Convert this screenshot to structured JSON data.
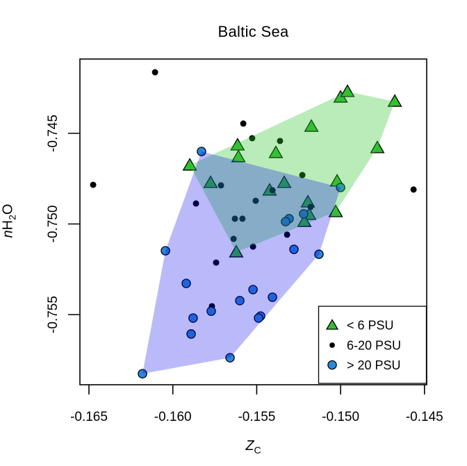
{
  "title": "Baltic Sea",
  "axes": {
    "x": {
      "label_italic": "Z",
      "label_sub": "C",
      "ticks": [
        -0.165,
        -0.16,
        -0.155,
        -0.15,
        -0.145
      ],
      "tick_labels": [
        "-0.165",
        "-0.160",
        "-0.155",
        "-0.150",
        "-0.145"
      ],
      "range": [
        -0.16554,
        -0.14487
      ]
    },
    "y": {
      "label_italic": "n",
      "label_main": "H",
      "label_sub": "2",
      "label_post": "O",
      "ticks": [
        -0.745,
        -0.75,
        -0.755
      ],
      "tick_labels": [
        "-0.745",
        "-0.750",
        "-0.755"
      ],
      "range": [
        -0.75887,
        -0.7409
      ]
    }
  },
  "legend": {
    "position": "bottomright",
    "items": [
      {
        "label": "< 6 PSU",
        "marker": "triangle",
        "color": "#35BC35"
      },
      {
        "label": "6-20 PSU",
        "marker": "dot",
        "color": "#000000"
      },
      {
        "label": "> 20 PSU",
        "marker": "circle",
        "color": "#2B87D8"
      }
    ]
  },
  "chart_data": {
    "type": "scatter",
    "title": "Baltic Sea",
    "xlabel": "Z_C",
    "ylabel": "nH2O",
    "xlim": [
      -0.16554,
      -0.14487
    ],
    "ylim": [
      -0.75887,
      -0.7409
    ],
    "grid": false,
    "legend_position": "bottomright",
    "series": [
      {
        "name": "< 6 PSU",
        "marker": "triangle",
        "color": "#35BC35",
        "edge_color": "#000000",
        "hull": true,
        "hull_color": "#31C831",
        "hull_opacity": 0.34,
        "points": [
          [
            -0.15614,
            -0.74565
          ],
          [
            -0.15609,
            -0.7463
          ],
          [
            -0.15899,
            -0.74676
          ],
          [
            -0.15775,
            -0.74772
          ],
          [
            -0.15,
            -0.74301
          ],
          [
            -0.14959,
            -0.7427
          ],
          [
            -0.14677,
            -0.74324
          ],
          [
            -0.15174,
            -0.74462
          ],
          [
            -0.15386,
            -0.74607
          ],
          [
            -0.14781,
            -0.7458
          ],
          [
            -0.15336,
            -0.74772
          ],
          [
            -0.15423,
            -0.74814
          ],
          [
            -0.15021,
            -0.74764
          ],
          [
            -0.15195,
            -0.74879
          ],
          [
            -0.15187,
            -0.74948
          ],
          [
            -0.15029,
            -0.74933
          ],
          [
            -0.15216,
            -0.74987
          ],
          [
            -0.15622,
            -0.75155
          ]
        ]
      },
      {
        "name": "6-20 PSU",
        "marker": "dot",
        "color": "#000000",
        "hull": false,
        "points": [
          [
            -0.16106,
            -0.74163
          ],
          [
            -0.1558,
            -0.74446
          ],
          [
            -0.15527,
            -0.74527
          ],
          [
            -0.15361,
            -0.74542
          ],
          [
            -0.16475,
            -0.74784
          ],
          [
            -0.15713,
            -0.74787
          ],
          [
            -0.15862,
            -0.74887
          ],
          [
            -0.15228,
            -0.7473
          ],
          [
            -0.15406,
            -0.74814
          ],
          [
            -0.15506,
            -0.74872
          ],
          [
            -0.15179,
            -0.74906
          ],
          [
            -0.14565,
            -0.7481
          ],
          [
            -0.15638,
            -0.75082
          ],
          [
            -0.15522,
            -0.75125
          ],
          [
            -0.15742,
            -0.75213
          ],
          [
            -0.15767,
            -0.75454
          ],
          [
            -0.15319,
            -0.75059
          ],
          [
            -0.1563,
            -0.74971
          ],
          [
            -0.15585,
            -0.74971
          ]
        ]
      },
      {
        "name": "> 20 PSU",
        "marker": "circle",
        "color": "#2B87D8",
        "edge_color": "#000000",
        "hull": true,
        "hull_color": "#0000F0",
        "hull_opacity": 0.27,
        "points": [
          [
            -0.15829,
            -0.746
          ],
          [
            -0.15,
            -0.74799
          ],
          [
            -0.1522,
            -0.74944
          ],
          [
            -0.15307,
            -0.74971
          ],
          [
            -0.15328,
            -0.74987
          ],
          [
            -0.16044,
            -0.75148
          ],
          [
            -0.1592,
            -0.75328
          ],
          [
            -0.15522,
            -0.75362
          ],
          [
            -0.15601,
            -0.75423
          ],
          [
            -0.15771,
            -0.75481
          ],
          [
            -0.15879,
            -0.75519
          ],
          [
            -0.15891,
            -0.75607
          ],
          [
            -0.15659,
            -0.75738
          ],
          [
            -0.16181,
            -0.75826
          ],
          [
            -0.15278,
            -0.7514
          ],
          [
            -0.15129,
            -0.75167
          ],
          [
            -0.15406,
            -0.75404
          ],
          [
            -0.15477,
            -0.75508
          ],
          [
            -0.15489,
            -0.75519
          ]
        ]
      }
    ]
  }
}
